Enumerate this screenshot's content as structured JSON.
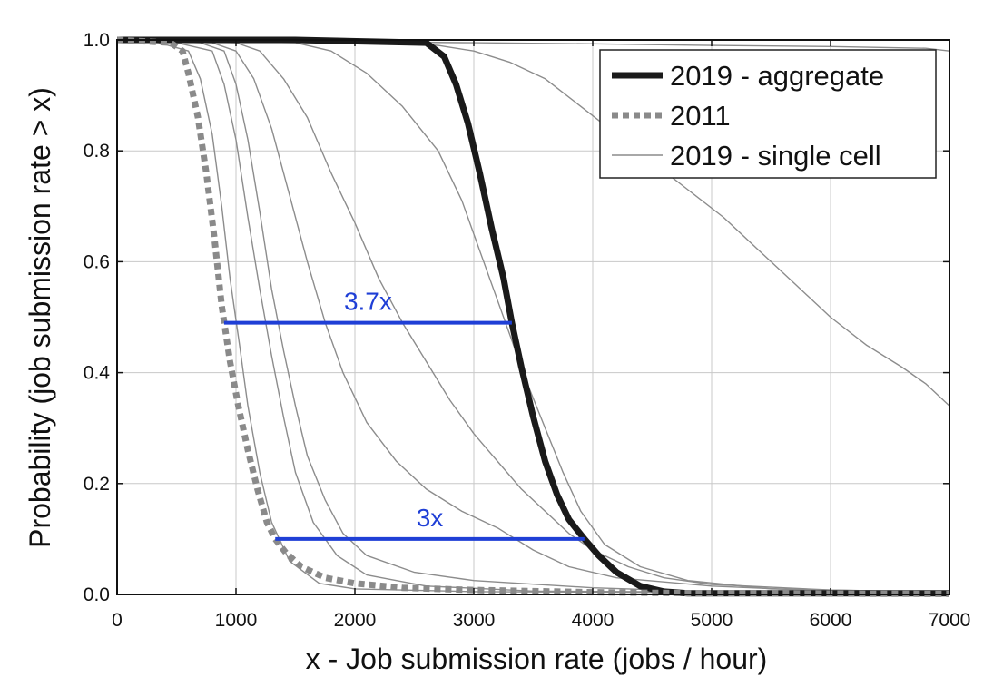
{
  "chart_data": {
    "type": "line",
    "xlabel": "x - Job submission rate (jobs / hour)",
    "ylabel": "Probability (job submission rate > x)",
    "xlim": [
      0,
      7000
    ],
    "ylim": [
      0,
      1
    ],
    "xticks": [
      "0",
      "1000",
      "2000",
      "3000",
      "4000",
      "5000",
      "6000",
      "7000"
    ],
    "yticks": [
      "0.0",
      "0.2",
      "0.4",
      "0.6",
      "0.8",
      "1.0"
    ],
    "grid": true,
    "legend_position": "top-right",
    "colors": {
      "aggregate": "#1a1a1a",
      "y2011": "#8a8a8a",
      "cell": "#8c8c8c",
      "annotation": "#1f3fd6"
    },
    "series": [
      {
        "name": "2019 - aggregate",
        "style": "thick-solid",
        "points": [
          [
            0,
            1.0
          ],
          [
            1500,
            1.0
          ],
          [
            2600,
            0.995
          ],
          [
            2750,
            0.97
          ],
          [
            2850,
            0.92
          ],
          [
            2950,
            0.85
          ],
          [
            3050,
            0.76
          ],
          [
            3150,
            0.66
          ],
          [
            3250,
            0.57
          ],
          [
            3320,
            0.49
          ],
          [
            3400,
            0.41
          ],
          [
            3500,
            0.32
          ],
          [
            3600,
            0.24
          ],
          [
            3700,
            0.18
          ],
          [
            3800,
            0.135
          ],
          [
            3930,
            0.1
          ],
          [
            4050,
            0.07
          ],
          [
            4200,
            0.04
          ],
          [
            4400,
            0.015
          ],
          [
            4600,
            0.005
          ],
          [
            4800,
            0.002
          ],
          [
            7000,
            0.002
          ]
        ]
      },
      {
        "name": "2011",
        "style": "thick-dotted",
        "points": [
          [
            0,
            1.0
          ],
          [
            450,
            0.995
          ],
          [
            550,
            0.98
          ],
          [
            600,
            0.94
          ],
          [
            680,
            0.86
          ],
          [
            750,
            0.76
          ],
          [
            820,
            0.64
          ],
          [
            880,
            0.52
          ],
          [
            950,
            0.42
          ],
          [
            1020,
            0.34
          ],
          [
            1100,
            0.26
          ],
          [
            1180,
            0.19
          ],
          [
            1260,
            0.13
          ],
          [
            1330,
            0.1
          ],
          [
            1420,
            0.075
          ],
          [
            1550,
            0.05
          ],
          [
            1750,
            0.03
          ],
          [
            2000,
            0.02
          ],
          [
            2400,
            0.012
          ],
          [
            3000,
            0.008
          ],
          [
            4000,
            0.004
          ],
          [
            5000,
            0.002
          ],
          [
            7000,
            0.001
          ]
        ]
      },
      {
        "name": "2019 - single cell",
        "style": "thin-solid",
        "points": [
          [
            0,
            1.0
          ],
          [
            350,
            0.995
          ],
          [
            600,
            0.98
          ],
          [
            700,
            0.93
          ],
          [
            800,
            0.83
          ],
          [
            880,
            0.7
          ],
          [
            950,
            0.57
          ],
          [
            1030,
            0.45
          ],
          [
            1100,
            0.34
          ],
          [
            1200,
            0.22
          ],
          [
            1300,
            0.13
          ],
          [
            1450,
            0.06
          ],
          [
            1700,
            0.02
          ],
          [
            2000,
            0.01
          ],
          [
            3000,
            0.005
          ],
          [
            7000,
            0.002
          ]
        ]
      },
      {
        "name": "",
        "style": "thin-solid",
        "points": [
          [
            0,
            1.0
          ],
          [
            500,
            0.995
          ],
          [
            800,
            0.98
          ],
          [
            900,
            0.92
          ],
          [
            1000,
            0.82
          ],
          [
            1100,
            0.68
          ],
          [
            1200,
            0.55
          ],
          [
            1300,
            0.43
          ],
          [
            1400,
            0.32
          ],
          [
            1500,
            0.22
          ],
          [
            1650,
            0.13
          ],
          [
            1850,
            0.07
          ],
          [
            2100,
            0.035
          ],
          [
            2600,
            0.015
          ],
          [
            3500,
            0.006
          ],
          [
            7000,
            0.002
          ]
        ]
      },
      {
        "name": "",
        "style": "thin-solid",
        "points": [
          [
            0,
            1.0
          ],
          [
            700,
            0.995
          ],
          [
            900,
            0.98
          ],
          [
            1000,
            0.92
          ],
          [
            1100,
            0.82
          ],
          [
            1200,
            0.69
          ],
          [
            1300,
            0.55
          ],
          [
            1400,
            0.44
          ],
          [
            1500,
            0.34
          ],
          [
            1600,
            0.25
          ],
          [
            1750,
            0.17
          ],
          [
            1900,
            0.11
          ],
          [
            2100,
            0.07
          ],
          [
            2500,
            0.04
          ],
          [
            3000,
            0.025
          ],
          [
            4000,
            0.012
          ],
          [
            5000,
            0.005
          ],
          [
            7000,
            0.002
          ]
        ]
      },
      {
        "name": "",
        "style": "thin-solid",
        "points": [
          [
            0,
            1.0
          ],
          [
            800,
            0.995
          ],
          [
            1000,
            0.98
          ],
          [
            1150,
            0.93
          ],
          [
            1300,
            0.84
          ],
          [
            1450,
            0.72
          ],
          [
            1600,
            0.6
          ],
          [
            1750,
            0.49
          ],
          [
            1900,
            0.4
          ],
          [
            2100,
            0.31
          ],
          [
            2350,
            0.24
          ],
          [
            2600,
            0.19
          ],
          [
            2900,
            0.15
          ],
          [
            3200,
            0.12
          ],
          [
            3500,
            0.08
          ],
          [
            3800,
            0.05
          ],
          [
            4200,
            0.03
          ],
          [
            5000,
            0.015
          ],
          [
            6000,
            0.006
          ],
          [
            7000,
            0.003
          ]
        ]
      },
      {
        "name": "",
        "style": "thin-solid",
        "points": [
          [
            0,
            1.0
          ],
          [
            1000,
            0.995
          ],
          [
            1200,
            0.98
          ],
          [
            1400,
            0.93
          ],
          [
            1600,
            0.86
          ],
          [
            1800,
            0.76
          ],
          [
            2000,
            0.67
          ],
          [
            2200,
            0.57
          ],
          [
            2400,
            0.49
          ],
          [
            2600,
            0.42
          ],
          [
            2800,
            0.35
          ],
          [
            3000,
            0.29
          ],
          [
            3200,
            0.24
          ],
          [
            3400,
            0.19
          ],
          [
            3600,
            0.15
          ],
          [
            3800,
            0.11
          ],
          [
            4000,
            0.08
          ],
          [
            4300,
            0.05
          ],
          [
            4600,
            0.03
          ],
          [
            5000,
            0.018
          ],
          [
            6000,
            0.008
          ],
          [
            7000,
            0.004
          ]
        ]
      },
      {
        "name": "",
        "style": "thin-solid",
        "points": [
          [
            0,
            1.0
          ],
          [
            1500,
            0.995
          ],
          [
            1800,
            0.98
          ],
          [
            2100,
            0.94
          ],
          [
            2400,
            0.88
          ],
          [
            2700,
            0.8
          ],
          [
            2900,
            0.71
          ],
          [
            3050,
            0.62
          ],
          [
            3200,
            0.53
          ],
          [
            3300,
            0.47
          ],
          [
            3450,
            0.38
          ],
          [
            3600,
            0.3
          ],
          [
            3750,
            0.22
          ],
          [
            3900,
            0.15
          ],
          [
            4100,
            0.09
          ],
          [
            4400,
            0.05
          ],
          [
            4800,
            0.025
          ],
          [
            5500,
            0.01
          ],
          [
            7000,
            0.004
          ]
        ]
      },
      {
        "name": "",
        "style": "thin-solid",
        "points": [
          [
            0,
            1.0
          ],
          [
            2000,
            0.995
          ],
          [
            2700,
            0.99
          ],
          [
            3000,
            0.98
          ],
          [
            3300,
            0.96
          ],
          [
            3600,
            0.93
          ],
          [
            3900,
            0.88
          ],
          [
            4200,
            0.83
          ],
          [
            4500,
            0.78
          ],
          [
            4800,
            0.73
          ],
          [
            5100,
            0.68
          ],
          [
            5400,
            0.62
          ],
          [
            5700,
            0.56
          ],
          [
            6000,
            0.5
          ],
          [
            6300,
            0.45
          ],
          [
            6600,
            0.41
          ],
          [
            6800,
            0.38
          ],
          [
            7000,
            0.34
          ]
        ]
      },
      {
        "name": "",
        "style": "thin-solid",
        "points": [
          [
            0,
            1.0
          ],
          [
            3000,
            0.995
          ],
          [
            4000,
            0.993
          ],
          [
            5000,
            0.99
          ],
          [
            6000,
            0.988
          ],
          [
            6800,
            0.985
          ],
          [
            7000,
            0.98
          ]
        ]
      }
    ],
    "annotations": [
      {
        "label": "3.7x",
        "x1": 900,
        "x2": 3320,
        "y": 0.49
      },
      {
        "label": "3x",
        "x1": 1330,
        "x2": 3930,
        "y": 0.1
      }
    ]
  }
}
